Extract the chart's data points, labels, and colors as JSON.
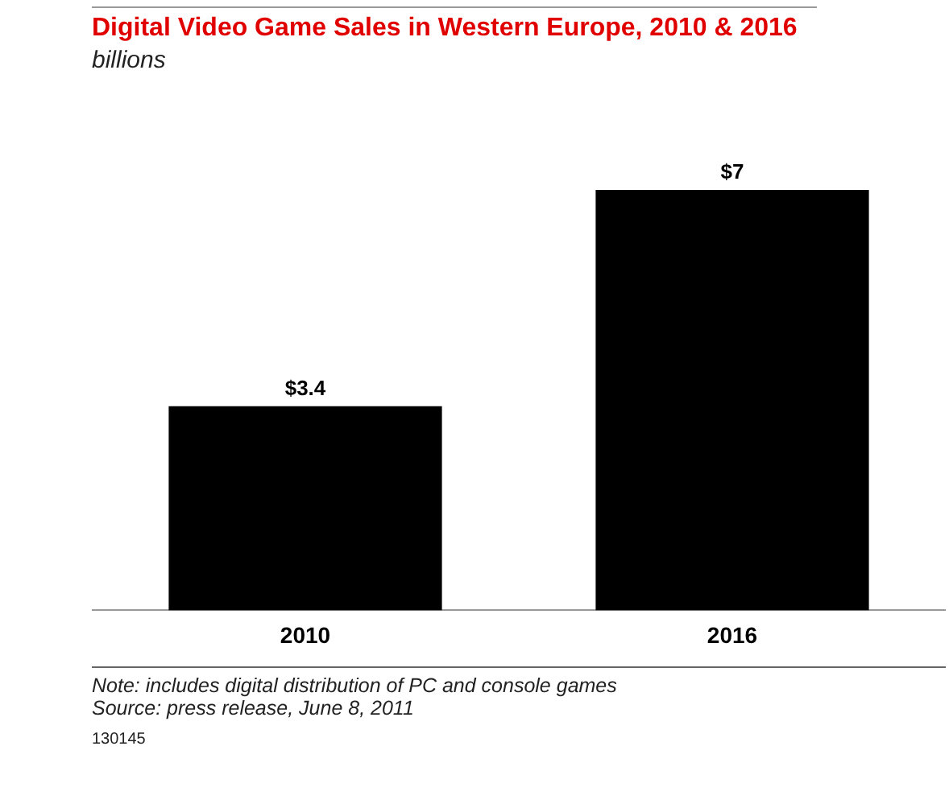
{
  "chart_data": {
    "type": "bar",
    "title": "Digital Video Game Sales in Western Europe, 2010 & 2016",
    "subtitle": "billions",
    "categories": [
      "2010",
      "2016"
    ],
    "values": [
      3.4,
      7
    ],
    "color": "#000000",
    "value_labels": [
      "$3.4",
      "$7"
    ],
    "grid": false,
    "legend": false,
    "tick_labels": "x",
    "annotations": [
      "Note: includes digital distribution of PC and console games",
      "Source: press release, June 8, 2011",
      "130145"
    ]
  }
}
